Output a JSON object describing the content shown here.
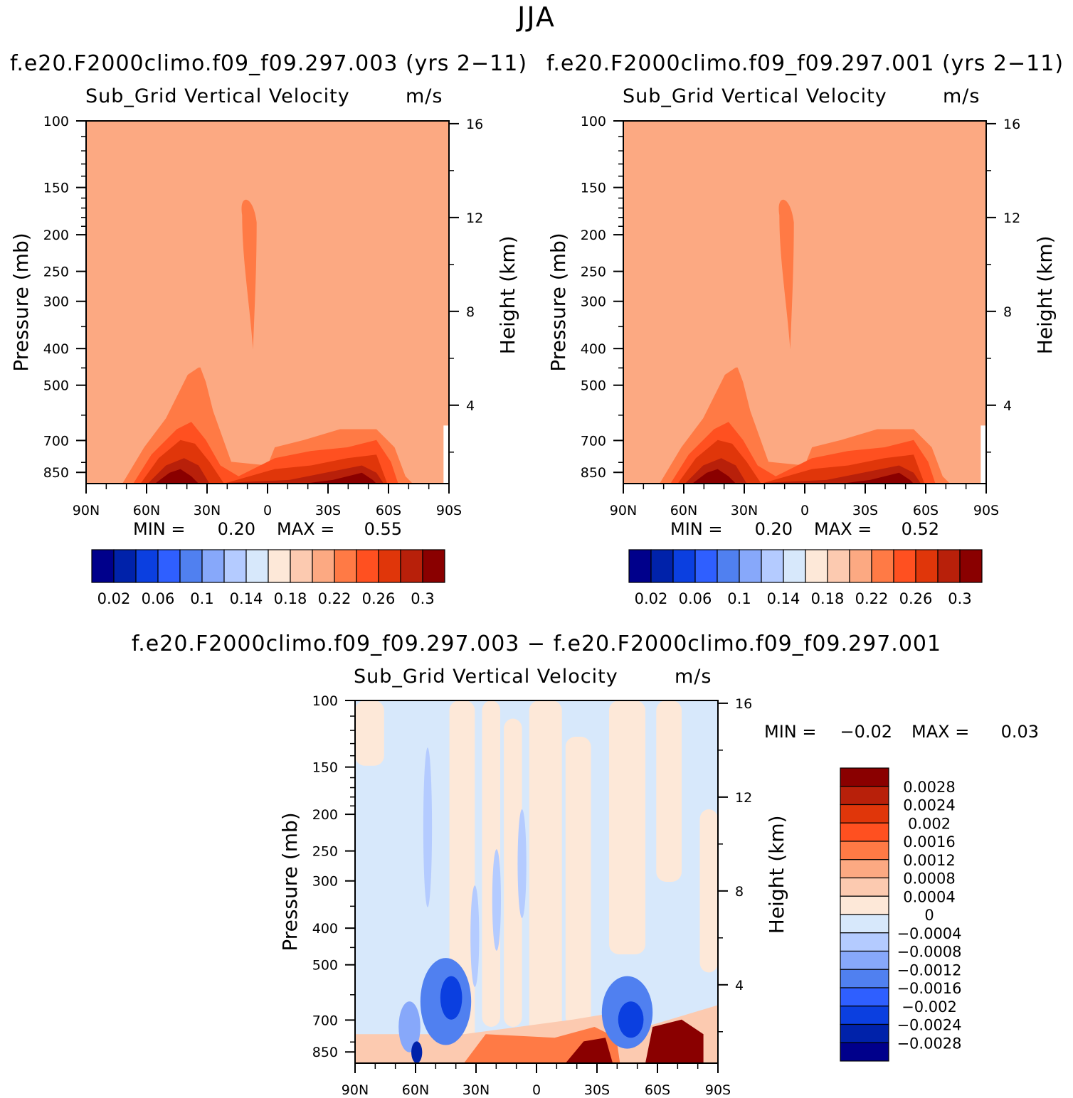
{
  "figure": {
    "season": "JJA"
  },
  "chart_data": [
    {
      "type": "contour",
      "panel": "top-left",
      "case_title": "f.e20.F2000climo.f09_f09.297.003 (yrs 2−11)",
      "variable": "Sub_Grid Vertical Velocity",
      "units": "m/s",
      "ylabel": "Pressure (mb)",
      "y2label": "Height (km)",
      "x_ticks": [
        "90N",
        "60N",
        "30N",
        "0",
        "30S",
        "60S",
        "90S"
      ],
      "y_ticks": [
        100,
        150,
        200,
        250,
        300,
        400,
        500,
        700,
        850
      ],
      "y2_ticks": [
        16,
        12,
        8,
        4
      ],
      "min_label": "MIN =",
      "min_value": "0.20",
      "max_label": "MAX =",
      "max_value": "0.55",
      "colorbar_labels": [
        "0.02",
        "0.06",
        "0.1",
        "0.14",
        "0.18",
        "0.22",
        "0.26",
        "0.3"
      ],
      "colorbar_colors": [
        "#00008b",
        "#0022aa",
        "#0b3fe0",
        "#2f5fff",
        "#5080f0",
        "#87a8fa",
        "#b4cbff",
        "#d7e8fb",
        "#fde8d8",
        "#fccab0",
        "#fca982",
        "#ff7a45",
        "#ff5020",
        "#e0360a",
        "#b8200a",
        "#8a0000"
      ]
    },
    {
      "type": "contour",
      "panel": "top-right",
      "case_title": "f.e20.F2000climo.f09_f09.297.001 (yrs 2−11)",
      "variable": "Sub_Grid Vertical Velocity",
      "units": "m/s",
      "ylabel": "Pressure (mb)",
      "y2label": "Height (km)",
      "x_ticks": [
        "90N",
        "60N",
        "30N",
        "0",
        "30S",
        "60S",
        "90S"
      ],
      "y_ticks": [
        100,
        150,
        200,
        250,
        300,
        400,
        500,
        700,
        850
      ],
      "y2_ticks": [
        16,
        12,
        8,
        4
      ],
      "min_label": "MIN =",
      "min_value": "0.20",
      "max_label": "MAX =",
      "max_value": "0.52",
      "colorbar_labels": [
        "0.02",
        "0.06",
        "0.1",
        "0.14",
        "0.18",
        "0.22",
        "0.26",
        "0.3"
      ],
      "colorbar_colors": [
        "#00008b",
        "#0022aa",
        "#0b3fe0",
        "#2f5fff",
        "#5080f0",
        "#87a8fa",
        "#b4cbff",
        "#d7e8fb",
        "#fde8d8",
        "#fccab0",
        "#fca982",
        "#ff7a45",
        "#ff5020",
        "#e0360a",
        "#b8200a",
        "#8a0000"
      ]
    },
    {
      "type": "contour",
      "panel": "bottom-difference",
      "case_title": "f.e20.F2000climo.f09_f09.297.003 − f.e20.F2000climo.f09_f09.297.001",
      "variable": "Sub_Grid Vertical Velocity",
      "units": "m/s",
      "ylabel": "Pressure (mb)",
      "y2label": "Height (km)",
      "x_ticks": [
        "90N",
        "60N",
        "30N",
        "0",
        "30S",
        "60S",
        "90S"
      ],
      "y_ticks": [
        100,
        150,
        200,
        250,
        300,
        400,
        500,
        700,
        850
      ],
      "y2_ticks": [
        16,
        12,
        8,
        4
      ],
      "min_label": "MIN =",
      "min_value": "−0.02",
      "max_label": "MAX =",
      "max_value": "0.03",
      "colorbar_labels": [
        "0.0028",
        "0.0024",
        "0.002",
        "0.0016",
        "0.0012",
        "0.0008",
        "0.0004",
        "0",
        "−0.0004",
        "−0.0008",
        "−0.0012",
        "−0.0016",
        "−0.002",
        "−0.0024",
        "−0.0028"
      ],
      "colorbar_colors": [
        "#8a0000",
        "#b8200a",
        "#e0360a",
        "#ff5020",
        "#ff7a45",
        "#fca982",
        "#fccab0",
        "#fde8d8",
        "#d7e8fb",
        "#b4cbff",
        "#87a8fa",
        "#5080f0",
        "#2f5fff",
        "#0b3fe0",
        "#0022aa",
        "#00008b"
      ]
    }
  ]
}
